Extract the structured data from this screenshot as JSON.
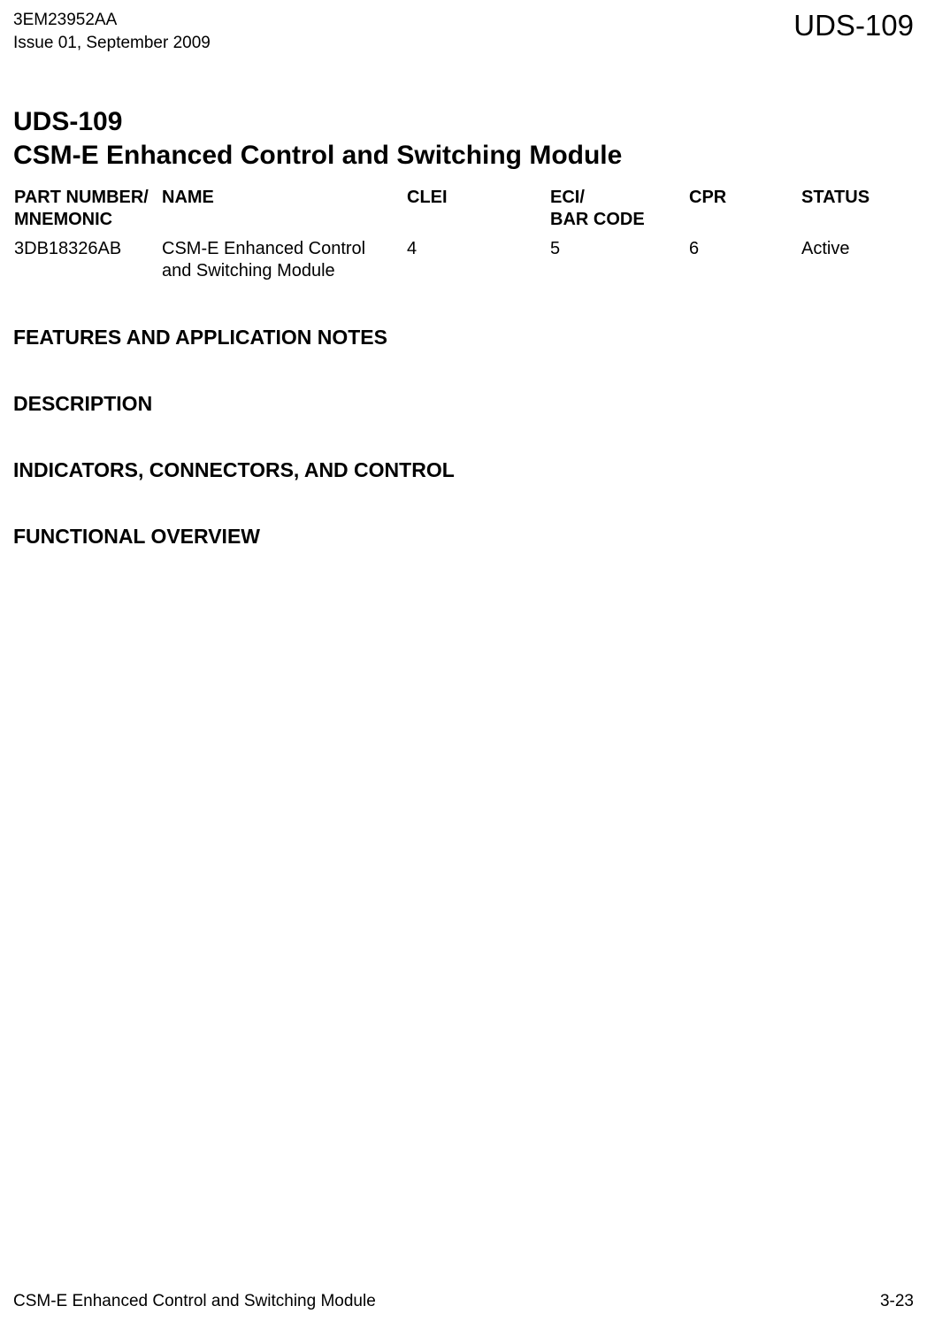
{
  "header": {
    "doc_number": "3EM23952AA",
    "issue_line": "Issue 01, September 2009",
    "right_code": "UDS-109"
  },
  "title": {
    "line1": "UDS-109",
    "line2": "CSM-E Enhanced Control and Switching Module"
  },
  "table": {
    "headers": {
      "part_l1": "PART NUMBER/",
      "part_l2": "MNEMONIC",
      "name": "NAME",
      "clei": "CLEI",
      "eci_l1": "ECI/",
      "eci_l2": "BAR CODE",
      "cpr": "CPR",
      "status": "STATUS"
    },
    "rows": [
      {
        "part": "3DB18326AB",
        "name_l1": "CSM-E Enhanced Control",
        "name_l2": "and Switching Module",
        "clei": "4",
        "eci": "5",
        "cpr": "6",
        "status": "Active"
      }
    ]
  },
  "sections": {
    "features": "FEATURES AND APPLICATION NOTES",
    "description": "DESCRIPTION",
    "indicators": "INDICATORS, CONNECTORS, AND CONTROL",
    "functional": "FUNCTIONAL OVERVIEW"
  },
  "footer": {
    "left": "CSM-E Enhanced Control and Switching Module",
    "right": "3-23"
  }
}
